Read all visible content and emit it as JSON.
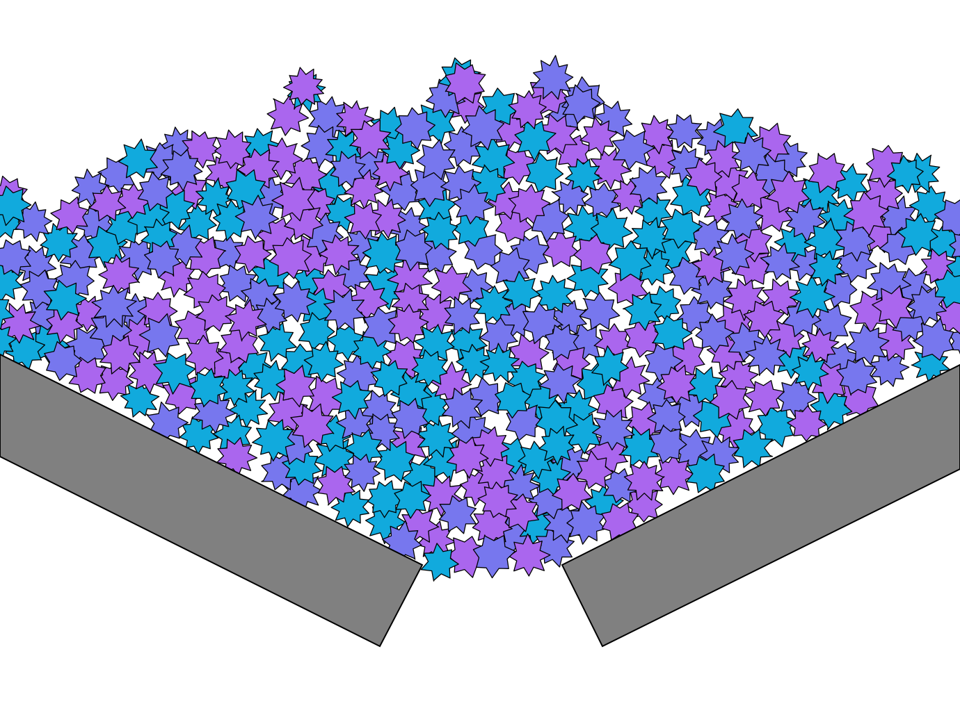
{
  "scene": {
    "background_color": "#ffffff",
    "outline_color": "#000000",
    "particle_shape": "star-icon",
    "particle_colors": [
      "#11aadd",
      "#7777ee",
      "#aa66ee"
    ],
    "wall_color": "#808080"
  }
}
